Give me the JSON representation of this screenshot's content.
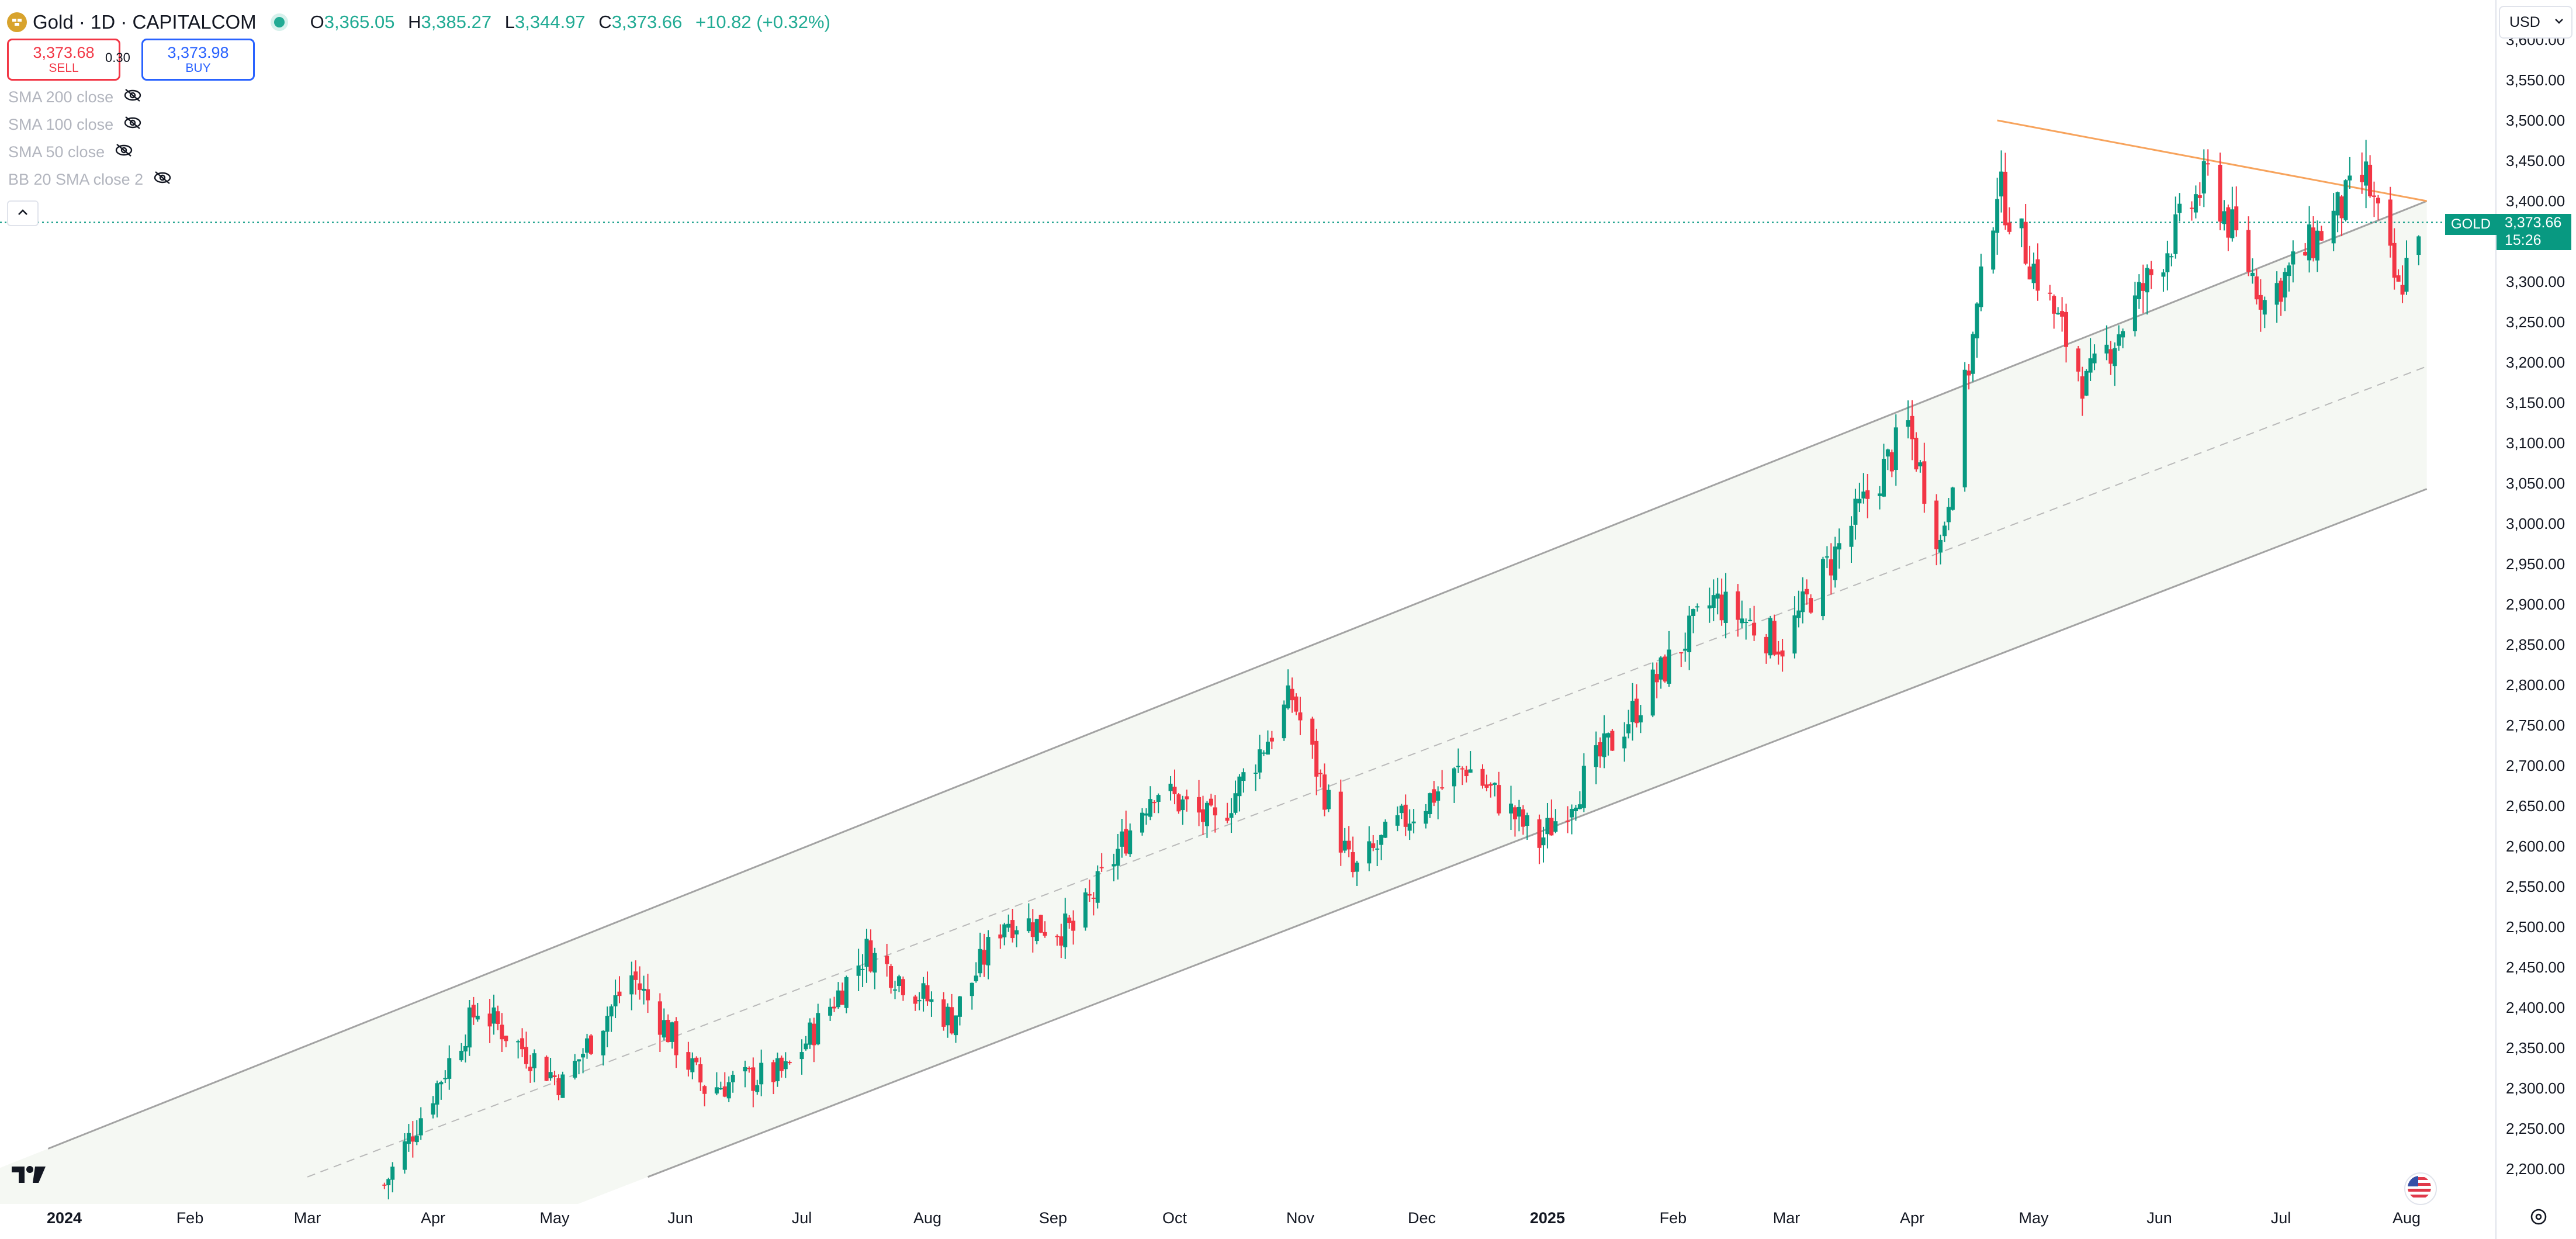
{
  "header": {
    "symbol_title": "Gold · 1D · CAPITALCOM",
    "ohlc": {
      "o_label": "O",
      "o": "3,365.05",
      "h_label": "H",
      "h": "3,385.27",
      "l_label": "L",
      "l": "3,344.97",
      "c_label": "C",
      "c": "3,373.66",
      "change": "+10.82 (+0.32%)"
    }
  },
  "trade": {
    "sell_price": "3,373.68",
    "sell_label": "SELL",
    "spread": "0.30",
    "buy_price": "3,373.98",
    "buy_label": "BUY"
  },
  "indicators": [
    "SMA 200 close",
    "SMA 100 close",
    "SMA 50 close",
    "BB 20 SMA close 2"
  ],
  "currency": "USD",
  "symbol_tag": "GOLD",
  "last_price": "3,373.66",
  "countdown": "15:26",
  "icons": [
    "gold-coin-icon",
    "live-status-icon",
    "eye-hidden-icon",
    "chevron-up-icon",
    "chevron-down-icon",
    "tradingview-logo-icon",
    "us-flag-icon",
    "gear-icon"
  ],
  "colors": {
    "up": "#089981",
    "down": "#f23645",
    "channel": "#9b9b9b",
    "resistance": "#f7a35c",
    "price_line": "#089981"
  },
  "chart_data": {
    "type": "candlestick",
    "title": "Gold · 1D · CAPITALCOM",
    "x_labels": [
      "2024",
      "Feb",
      "Mar",
      "Apr",
      "May",
      "Jun",
      "Jul",
      "Aug",
      "Sep",
      "Oct",
      "Nov",
      "Dec",
      "2025",
      "Feb",
      "Mar",
      "Apr",
      "May",
      "Jun",
      "Jul",
      "Aug"
    ],
    "bold_x_labels": [
      "2024",
      "2025"
    ],
    "y_ticks": [
      "2,200.00",
      "2,250.00",
      "2,300.00",
      "2,350.00",
      "2,400.00",
      "2,450.00",
      "2,500.00",
      "2,550.00",
      "2,600.00",
      "2,650.00",
      "2,700.00",
      "2,750.00",
      "2,800.00",
      "2,850.00",
      "2,900.00",
      "2,950.00",
      "3,000.00",
      "3,050.00",
      "3,100.00",
      "3,150.00",
      "3,200.00",
      "3,250.00",
      "3,300.00",
      "3,350.00",
      "3,400.00",
      "3,450.00",
      "3,500.00",
      "3,550.00",
      "3,600.00"
    ],
    "ylim": [
      2180,
      3630
    ],
    "price_path": [
      [
        "2024-03-20",
        2180
      ],
      [
        "2024-04-12",
        2400
      ],
      [
        "2024-05-03",
        2305
      ],
      [
        "2024-05-20",
        2440
      ],
      [
        "2024-06-07",
        2300
      ],
      [
        "2024-06-27",
        2320
      ],
      [
        "2024-07-17",
        2470
      ],
      [
        "2024-08-07",
        2385
      ],
      [
        "2024-08-20",
        2510
      ],
      [
        "2024-09-06",
        2495
      ],
      [
        "2024-09-26",
        2675
      ],
      [
        "2024-10-11",
        2625
      ],
      [
        "2024-10-30",
        2785
      ],
      [
        "2024-11-14",
        2565
      ],
      [
        "2024-11-25",
        2625
      ],
      [
        "2024-12-12",
        2700
      ],
      [
        "2024-12-30",
        2605
      ],
      [
        "2025-02-11",
        2905
      ],
      [
        "2025-02-28",
        2850
      ],
      [
        "2025-03-31",
        3120
      ],
      [
        "2025-04-08",
        2975
      ],
      [
        "2025-04-22",
        3420
      ],
      [
        "2025-05-14",
        3170
      ],
      [
        "2025-06-13",
        3430
      ],
      [
        "2025-06-27",
        3275
      ],
      [
        "2025-07-22",
        3430
      ],
      [
        "2025-07-30",
        3285
      ],
      [
        "2025-08-04",
        3374
      ]
    ],
    "last_price": 3373.66,
    "channel": {
      "upper": [
        [
          "2023-12-28",
          2225
        ],
        [
          "2025-08-06",
          3400
        ]
      ],
      "mid": [
        [
          "2024-03-01",
          2190
        ],
        [
          "2025-08-06",
          3195
        ]
      ],
      "lower": [
        [
          "2024-05-24",
          2190
        ],
        [
          "2025-08-06",
          3043
        ]
      ]
    },
    "resistance_line": [
      [
        "2025-04-22",
        3500
      ],
      [
        "2025-08-06",
        3400
      ]
    ]
  }
}
